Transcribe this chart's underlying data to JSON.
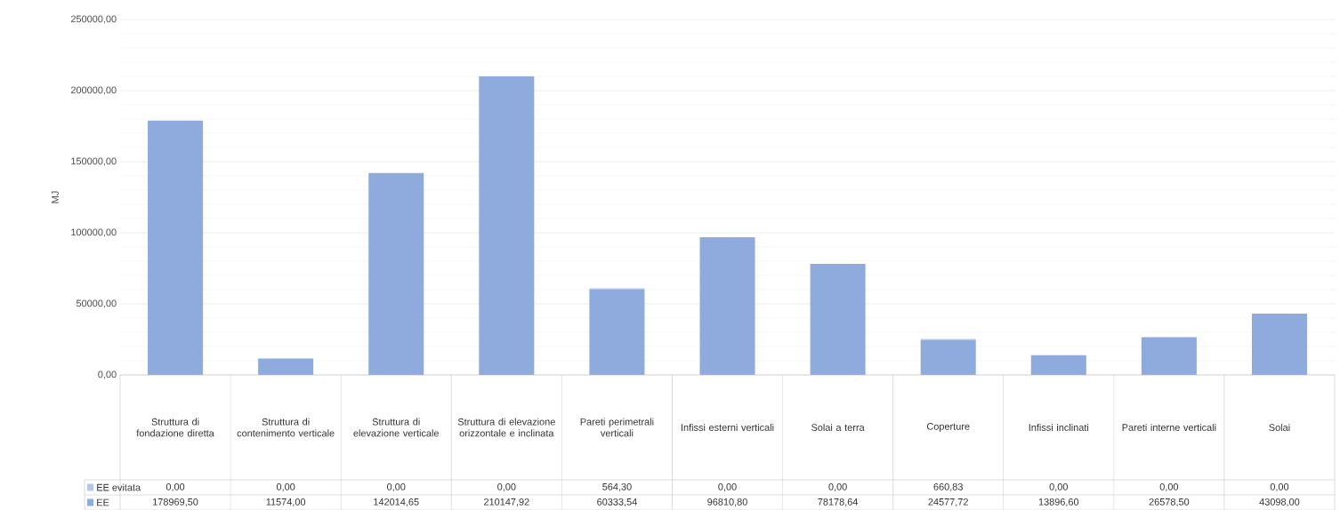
{
  "chart_data": {
    "type": "bar",
    "stacked": true,
    "ylabel": "MJ",
    "categories": [
      "Struttura di fondazione diretta",
      "Struttura di contenimento verticale",
      "Struttura di elevazione verticale",
      "Struttura di elevazione orizzontale e inclinata",
      "Pareti perimetrali verticali",
      "Infissi esterni verticali",
      "Solai a terra",
      "Coperture",
      "Infissi inclinati",
      "Pareti interne verticali",
      "Solai"
    ],
    "series": [
      {
        "name": "EE",
        "color": "#8faadc",
        "values": [
          178969.5,
          11574.0,
          142014.65,
          210147.92,
          60333.54,
          96810.8,
          78178.64,
          24577.72,
          13896.6,
          26578.5,
          43098.0
        ],
        "value_labels": [
          "178969,50",
          "11574,00",
          "142014,65",
          "210147,92",
          "60333,54",
          "96810,80",
          "78178,64",
          "24577,72",
          "13896,60",
          "26578,50",
          "43098,00"
        ]
      },
      {
        "name": "EE evitata",
        "color": "#b4c7e7",
        "values": [
          0.0,
          0.0,
          0.0,
          0.0,
          564.3,
          0.0,
          0.0,
          660.83,
          0.0,
          0.0,
          0.0
        ],
        "value_labels": [
          "0,00",
          "0,00",
          "0,00",
          "0,00",
          "564,30",
          "0,00",
          "0,00",
          "660,83",
          "0,00",
          "0,00",
          "0,00"
        ]
      }
    ],
    "ylim": [
      0,
      250000
    ],
    "yticks": [
      {
        "value": 0,
        "label": "0,00"
      },
      {
        "value": 50000,
        "label": "50000,00"
      },
      {
        "value": 100000,
        "label": "100000,00"
      },
      {
        "value": 150000,
        "label": "150000,00"
      },
      {
        "value": 200000,
        "label": "200000,00"
      },
      {
        "value": 250000,
        "label": "250000,00"
      }
    ],
    "grid": "y",
    "legend": "bottom",
    "tick_labels": "y"
  }
}
